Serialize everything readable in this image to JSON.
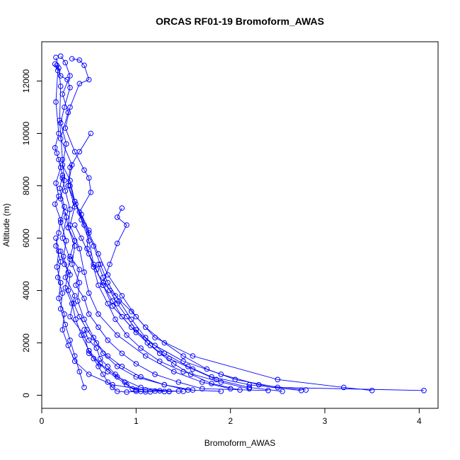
{
  "chart_data": {
    "type": "line",
    "title": "ORCAS RF01-19 Bromoform_AWAS",
    "xlabel": "Bromoform_AWAS",
    "ylabel": "Altitude (m)",
    "xlim": [
      0,
      4.2
    ],
    "ylim": [
      -500,
      13500
    ],
    "x_ticks": [
      0,
      1,
      2,
      3,
      4
    ],
    "y_ticks": [
      0,
      2000,
      4000,
      6000,
      8000,
      10000,
      12000
    ],
    "grid": false,
    "color": "#0000ff",
    "marker": "open-circle",
    "series": [
      {
        "points": [
          [
            0.15,
            12900
          ],
          [
            0.18,
            12500
          ],
          [
            0.2,
            11800
          ],
          [
            0.19,
            10500
          ],
          [
            0.22,
            9000
          ],
          [
            0.24,
            8200
          ],
          [
            0.2,
            7500
          ],
          [
            0.26,
            6800
          ],
          [
            0.22,
            6000
          ],
          [
            0.3,
            5200
          ],
          [
            0.25,
            4500
          ],
          [
            0.35,
            3800
          ],
          [
            0.3,
            3000
          ],
          [
            0.45,
            2300
          ],
          [
            0.5,
            1600
          ],
          [
            0.7,
            900
          ],
          [
            0.9,
            400
          ],
          [
            1.0,
            200
          ]
        ]
      },
      {
        "points": [
          [
            0.2,
            12950
          ],
          [
            0.25,
            12700
          ],
          [
            0.3,
            12200
          ],
          [
            0.22,
            11500
          ],
          [
            0.28,
            10800
          ],
          [
            0.2,
            9800
          ],
          [
            0.32,
            8800
          ],
          [
            0.28,
            8000
          ],
          [
            0.35,
            7200
          ],
          [
            0.3,
            6500
          ],
          [
            0.4,
            5600
          ],
          [
            0.45,
            4700
          ],
          [
            0.5,
            3900
          ],
          [
            0.6,
            3100
          ],
          [
            0.8,
            2300
          ],
          [
            1.1,
            1500
          ],
          [
            1.4,
            900
          ],
          [
            1.7,
            500
          ],
          [
            2.0,
            250
          ]
        ]
      },
      {
        "points": [
          [
            0.32,
            12850
          ],
          [
            0.4,
            12800
          ],
          [
            0.45,
            12600
          ],
          [
            0.5,
            12050
          ],
          [
            0.4,
            11900
          ],
          [
            0.3,
            11000
          ],
          [
            0.25,
            10200
          ],
          [
            0.35,
            9300
          ],
          [
            0.45,
            8600
          ],
          [
            0.5,
            8300
          ],
          [
            0.52,
            7750
          ],
          [
            0.4,
            7000
          ],
          [
            0.5,
            6200
          ],
          [
            0.6,
            5400
          ],
          [
            0.7,
            4600
          ],
          [
            0.85,
            3800
          ],
          [
            1.0,
            3000
          ],
          [
            1.2,
            2200
          ],
          [
            1.6,
            1500
          ],
          [
            2.5,
            600
          ],
          [
            3.2,
            300
          ],
          [
            3.5,
            180
          ]
        ]
      },
      {
        "points": [
          [
            0.14,
            12650
          ],
          [
            0.17,
            12400
          ],
          [
            0.15,
            11200
          ],
          [
            0.18,
            10000
          ],
          [
            0.14,
            9450
          ],
          [
            0.16,
            9250
          ],
          [
            0.2,
            8700
          ],
          [
            0.15,
            8100
          ],
          [
            0.18,
            7600
          ],
          [
            0.14,
            7300
          ],
          [
            0.2,
            6700
          ],
          [
            0.18,
            6200
          ],
          [
            0.15,
            5700
          ],
          [
            0.2,
            5100
          ],
          [
            0.17,
            4500
          ],
          [
            0.22,
            3900
          ],
          [
            0.2,
            3300
          ],
          [
            0.25,
            2700
          ],
          [
            0.3,
            2100
          ],
          [
            0.35,
            1500
          ],
          [
            0.4,
            900
          ],
          [
            0.45,
            300
          ]
        ]
      },
      {
        "points": [
          [
            0.16,
            12600
          ],
          [
            0.2,
            12200
          ],
          [
            0.27,
            12050
          ],
          [
            0.3,
            11750
          ],
          [
            0.24,
            11000
          ],
          [
            0.2,
            10400
          ],
          [
            0.26,
            9600
          ],
          [
            0.22,
            8800
          ],
          [
            0.3,
            8200
          ],
          [
            0.35,
            7400
          ],
          [
            0.42,
            6700
          ],
          [
            0.5,
            5900
          ],
          [
            0.55,
            5000
          ],
          [
            0.65,
            4200
          ],
          [
            0.75,
            3400
          ],
          [
            0.95,
            2600
          ],
          [
            1.2,
            1900
          ],
          [
            1.5,
            1300
          ],
          [
            1.9,
            800
          ],
          [
            2.3,
            400
          ],
          [
            2.8,
            200
          ]
        ]
      },
      {
        "points": [
          [
            0.52,
            10000
          ],
          [
            0.4,
            9300
          ],
          [
            0.3,
            8700
          ],
          [
            0.28,
            8000
          ],
          [
            0.36,
            7300
          ],
          [
            0.45,
            6500
          ],
          [
            0.55,
            5700
          ],
          [
            0.62,
            5000
          ],
          [
            0.7,
            4300
          ],
          [
            0.82,
            3600
          ],
          [
            0.95,
            2900
          ],
          [
            1.1,
            2200
          ],
          [
            1.3,
            1600
          ],
          [
            1.55,
            1100
          ],
          [
            1.8,
            700
          ],
          [
            2.2,
            400
          ],
          [
            2.75,
            180
          ]
        ]
      },
      {
        "points": [
          [
            0.85,
            7150
          ],
          [
            0.8,
            6800
          ],
          [
            0.9,
            6500
          ],
          [
            0.8,
            5800
          ],
          [
            0.72,
            5000
          ],
          [
            0.65,
            4300
          ],
          [
            0.78,
            3800
          ],
          [
            0.95,
            3200
          ],
          [
            1.1,
            2600
          ],
          [
            1.3,
            2000
          ],
          [
            1.5,
            1500
          ],
          [
            1.75,
            1000
          ],
          [
            2.05,
            600
          ],
          [
            2.5,
            300
          ],
          [
            4.05,
            180
          ]
        ]
      },
      {
        "points": [
          [
            0.22,
            8300
          ],
          [
            0.25,
            7800
          ],
          [
            0.3,
            7100
          ],
          [
            0.28,
            6400
          ],
          [
            0.35,
            5700
          ],
          [
            0.32,
            5000
          ],
          [
            0.4,
            4300
          ],
          [
            0.38,
            3600
          ],
          [
            0.45,
            2900
          ],
          [
            0.55,
            2200
          ],
          [
            0.65,
            1600
          ],
          [
            0.8,
            1100
          ],
          [
            1.0,
            700
          ],
          [
            1.3,
            400
          ],
          [
            1.6,
            200
          ]
        ]
      },
      {
        "points": [
          [
            0.18,
            9000
          ],
          [
            0.22,
            8400
          ],
          [
            0.19,
            7900
          ],
          [
            0.24,
            7200
          ],
          [
            0.2,
            6600
          ],
          [
            0.26,
            5900
          ],
          [
            0.23,
            5300
          ],
          [
            0.28,
            4700
          ],
          [
            0.25,
            4100
          ],
          [
            0.32,
            3500
          ],
          [
            0.36,
            2900
          ],
          [
            0.42,
            2300
          ],
          [
            0.5,
            1700
          ],
          [
            0.62,
            1200
          ],
          [
            0.8,
            700
          ],
          [
            1.05,
            300
          ],
          [
            1.35,
            150
          ]
        ]
      },
      {
        "points": [
          [
            0.3,
            8000
          ],
          [
            0.35,
            7400
          ],
          [
            0.42,
            6900
          ],
          [
            0.5,
            6300
          ],
          [
            0.48,
            5600
          ],
          [
            0.55,
            4900
          ],
          [
            0.6,
            4200
          ],
          [
            0.7,
            3500
          ],
          [
            0.78,
            2900
          ],
          [
            0.9,
            2300
          ],
          [
            1.05,
            1800
          ],
          [
            1.25,
            1300
          ],
          [
            1.5,
            900
          ],
          [
            1.9,
            500
          ],
          [
            2.2,
            250
          ]
        ]
      },
      {
        "points": [
          [
            0.15,
            6000
          ],
          [
            0.18,
            5500
          ],
          [
            0.16,
            4900
          ],
          [
            0.2,
            4300
          ],
          [
            0.18,
            3700
          ],
          [
            0.24,
            3100
          ],
          [
            0.22,
            2500
          ],
          [
            0.28,
            1900
          ],
          [
            0.35,
            1300
          ],
          [
            0.5,
            800
          ],
          [
            0.75,
            400
          ],
          [
            1.1,
            200
          ],
          [
            1.5,
            150
          ]
        ]
      },
      {
        "points": [
          [
            0.25,
            7000
          ],
          [
            0.28,
            6400
          ],
          [
            0.35,
            5900
          ],
          [
            0.3,
            5300
          ],
          [
            0.4,
            4800
          ],
          [
            0.36,
            4200
          ],
          [
            0.45,
            3700
          ],
          [
            0.5,
            3100
          ],
          [
            0.6,
            2600
          ],
          [
            0.7,
            2100
          ],
          [
            0.85,
            1600
          ],
          [
            1.0,
            1200
          ],
          [
            1.2,
            800
          ],
          [
            1.45,
            500
          ],
          [
            1.7,
            250
          ],
          [
            2.4,
            180
          ]
        ]
      },
      {
        "points": [
          [
            0.2,
            5500
          ],
          [
            0.24,
            5000
          ],
          [
            0.3,
            4600
          ],
          [
            0.28,
            4000
          ],
          [
            0.34,
            3500
          ],
          [
            0.4,
            3000
          ],
          [
            0.48,
            2500
          ],
          [
            0.58,
            2000
          ],
          [
            0.7,
            1500
          ],
          [
            0.85,
            1100
          ],
          [
            1.05,
            700
          ],
          [
            1.3,
            400
          ],
          [
            1.55,
            200
          ],
          [
            1.9,
            150
          ]
        ]
      },
      {
        "points": [
          [
            0.35,
            6500
          ],
          [
            0.42,
            6000
          ],
          [
            0.5,
            5400
          ],
          [
            0.58,
            4800
          ],
          [
            0.65,
            4200
          ],
          [
            0.75,
            3600
          ],
          [
            0.85,
            3000
          ],
          [
            1.0,
            2400
          ],
          [
            1.15,
            1900
          ],
          [
            1.35,
            1400
          ],
          [
            1.6,
            1000
          ],
          [
            1.85,
            600
          ],
          [
            2.2,
            300
          ],
          [
            2.55,
            150
          ]
        ]
      },
      {
        "points": [
          [
            0.6,
            5000
          ],
          [
            0.65,
            4500
          ],
          [
            0.72,
            4000
          ],
          [
            0.8,
            3500
          ],
          [
            0.9,
            3000
          ],
          [
            1.0,
            2500
          ],
          [
            1.12,
            2000
          ],
          [
            1.25,
            1600
          ],
          [
            1.4,
            1200
          ],
          [
            1.58,
            800
          ],
          [
            1.8,
            450
          ],
          [
            2.1,
            200
          ]
        ]
      },
      {
        "points": [
          [
            0.5,
            1700
          ],
          [
            0.55,
            1400
          ],
          [
            0.6,
            1100
          ],
          [
            0.65,
            800
          ],
          [
            0.7,
            500
          ],
          [
            0.75,
            300
          ],
          [
            0.8,
            150
          ],
          [
            0.9,
            120
          ],
          [
            1.0,
            150
          ],
          [
            1.1,
            130
          ],
          [
            1.2,
            160
          ],
          [
            1.3,
            140
          ]
        ]
      },
      {
        "points": [
          [
            0.45,
            2500
          ],
          [
            0.5,
            2100
          ],
          [
            0.58,
            1800
          ],
          [
            0.62,
            1400
          ],
          [
            0.7,
            1100
          ],
          [
            0.78,
            800
          ],
          [
            0.88,
            500
          ],
          [
            0.96,
            250
          ],
          [
            1.05,
            150
          ],
          [
            1.15,
            130
          ],
          [
            1.25,
            170
          ],
          [
            1.35,
            140
          ],
          [
            1.45,
            160
          ]
        ]
      }
    ]
  }
}
